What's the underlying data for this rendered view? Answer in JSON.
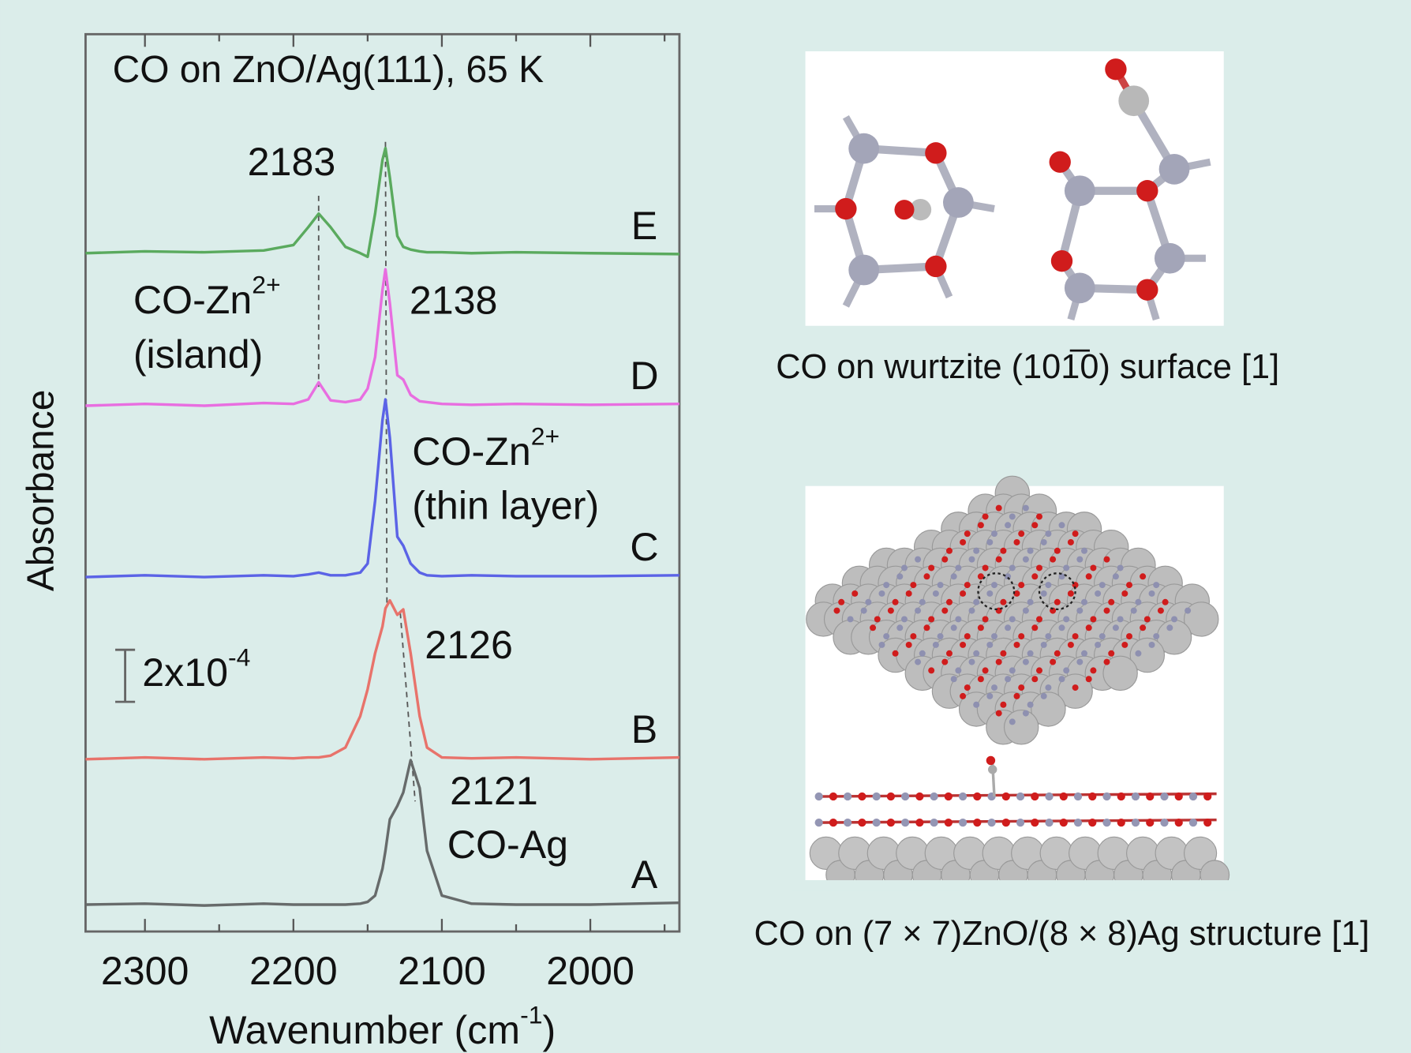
{
  "chart_data": {
    "type": "line",
    "title": "CO on ZnO/Ag(111), 65 K",
    "x_label": {
      "text": "Wavenumber (cm",
      "sup": "-1",
      "after": ")"
    },
    "y_label": "Absorbance",
    "x": [
      2340,
      2300,
      2260,
      2220,
      2200,
      2190,
      2183,
      2175,
      2165,
      2155,
      2150,
      2145,
      2140,
      2138,
      2135,
      2130,
      2126,
      2121,
      2115,
      2110,
      2100,
      2080,
      2050,
      2000,
      1940
    ],
    "xlim": [
      2340,
      1940
    ],
    "xticks": [
      2300,
      2200,
      2100,
      2000
    ],
    "xminorticks": [
      2250,
      2150,
      2050,
      1950
    ],
    "ylim": [
      0,
      100
    ],
    "series": [
      {
        "name": "A",
        "color": "#676b6b",
        "values": [
          3.0,
          3.1,
          2.9,
          3.1,
          3.0,
          3.0,
          3.0,
          3.0,
          3.0,
          3.1,
          3.3,
          4.0,
          7.0,
          9.0,
          12.5,
          14.0,
          15.5,
          19.1,
          16.0,
          9.0,
          4.0,
          3.1,
          3.0,
          3.0,
          3.2
        ]
      },
      {
        "name": "B",
        "color": "#e8736b",
        "values": [
          19.2,
          19.4,
          19.2,
          19.4,
          19.3,
          19.4,
          19.4,
          19.6,
          20.5,
          24.0,
          27.0,
          31.0,
          34.0,
          36.0,
          36.9,
          35.3,
          35.9,
          31.0,
          24.0,
          20.5,
          19.4,
          19.3,
          19.4,
          19.2,
          19.4
        ]
      },
      {
        "name": "C",
        "color": "#5b63e6",
        "values": [
          39.5,
          39.7,
          39.5,
          39.7,
          39.6,
          39.8,
          40.0,
          39.7,
          39.7,
          40.0,
          41.0,
          48.0,
          57.0,
          59.3,
          55.0,
          44.0,
          43.0,
          41.0,
          40.0,
          39.7,
          39.6,
          39.7,
          39.6,
          39.6,
          39.7
        ]
      },
      {
        "name": "D",
        "color": "#e86ee0",
        "values": [
          58.6,
          58.8,
          58.6,
          58.9,
          58.8,
          59.3,
          61.2,
          59.2,
          59.0,
          59.3,
          60.5,
          64.0,
          71.5,
          73.8,
          70.0,
          62.0,
          61.5,
          59.8,
          59.1,
          59.0,
          58.8,
          58.7,
          58.8,
          58.7,
          58.8
        ]
      },
      {
        "name": "E",
        "color": "#5aaa5e",
        "values": [
          75.6,
          75.8,
          75.7,
          75.9,
          76.5,
          78.5,
          80.0,
          78.5,
          76.3,
          75.6,
          75.2,
          80.0,
          86.0,
          87.3,
          84.0,
          77.5,
          76.3,
          76.0,
          75.8,
          75.7,
          75.7,
          75.6,
          75.7,
          75.6,
          75.5
        ]
      }
    ],
    "peak_labels": [
      "2183",
      "2138",
      "2126",
      "2121"
    ],
    "annotations": [
      {
        "text": "CO-Zn",
        "sup": "2+",
        "line2": "(island)"
      },
      {
        "text": "CO-Zn",
        "sup": "2+",
        "line2": "(thin layer)"
      },
      {
        "text": "CO-Ag"
      }
    ],
    "dashed_lines": [
      {
        "x": [
          2183,
          2183
        ],
        "y": [
          82.0,
          60.7
        ]
      },
      {
        "x": [
          2138,
          2137
        ],
        "y": [
          88.0,
          36.6
        ]
      },
      {
        "x": [
          2128,
          2118
        ],
        "y": [
          35.5,
          14.5
        ]
      }
    ],
    "scale_bar": {
      "base": "2x10",
      "sup": "-4",
      "length": 5.8
    }
  },
  "figures": [
    {
      "caption": "CO on wurtzite (101̅0) surface [1]"
    },
    {
      "caption": "CO on (7 × 7)ZnO/(8 × 8)Ag structure [1]"
    }
  ]
}
